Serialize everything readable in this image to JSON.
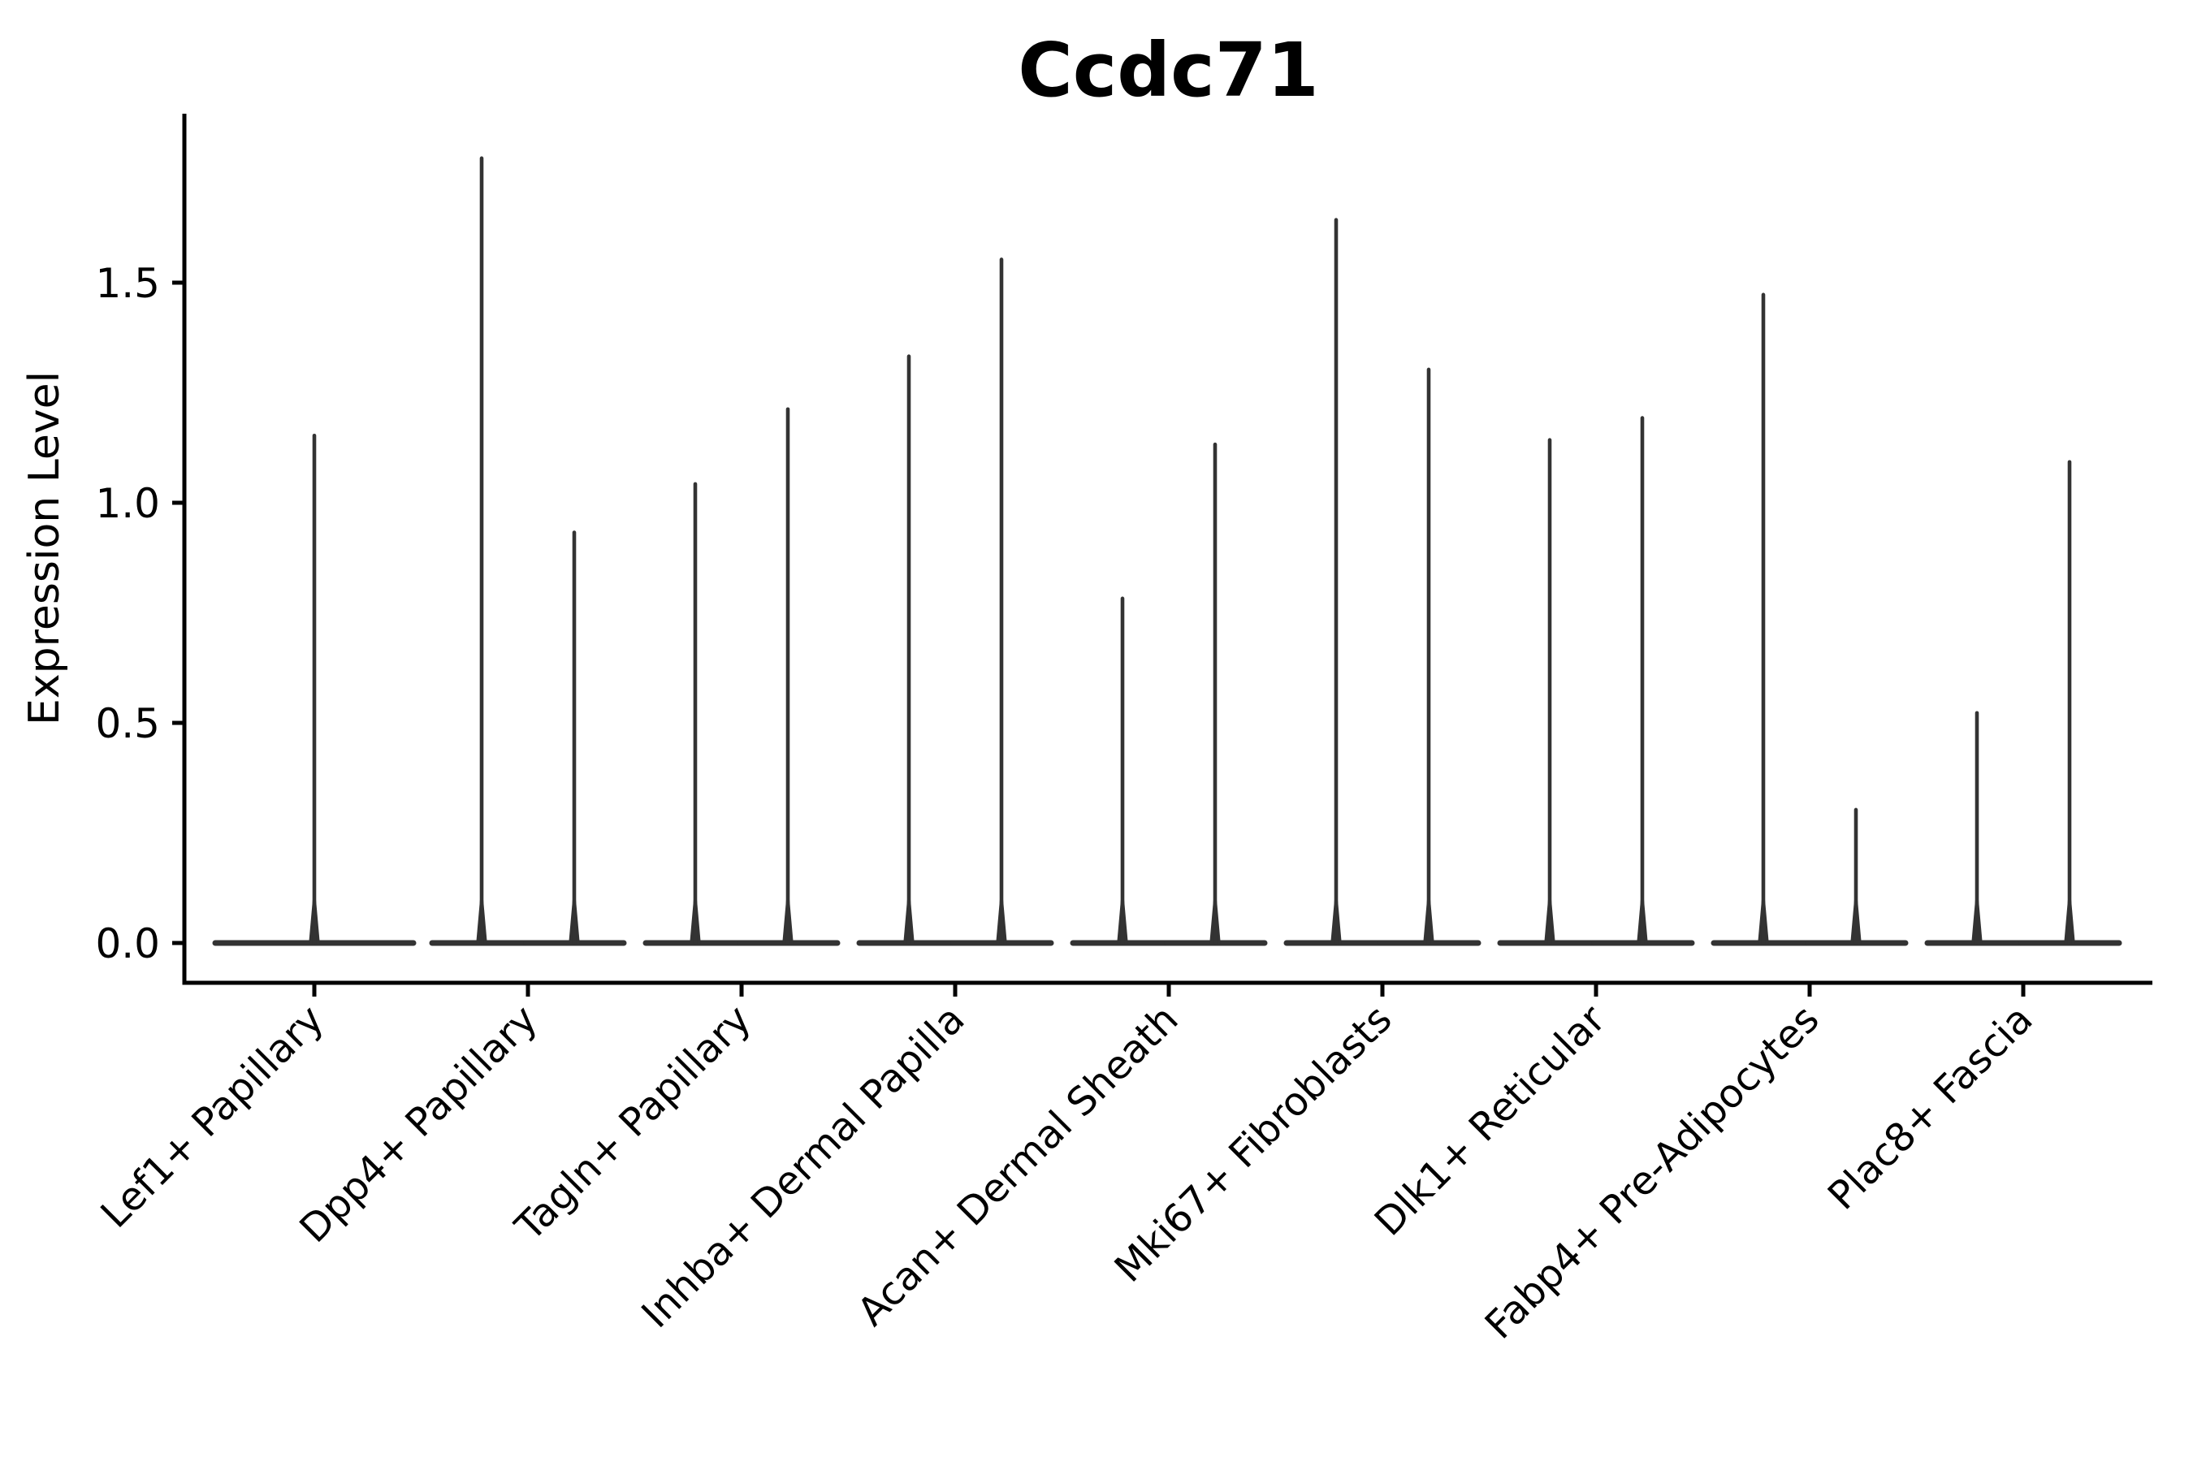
{
  "chart_data": {
    "type": "violin",
    "title": "Ccdc71",
    "ylabel": "Expression Level",
    "xlabel": "",
    "ytick_labels": [
      "0.0",
      "0.5",
      "1.0",
      "1.5"
    ],
    "ytick_values": [
      0.0,
      0.5,
      1.0,
      1.5
    ],
    "ylim": [
      -0.09,
      1.88
    ],
    "grid": false,
    "legend_position": "none",
    "violin_color": "#333333",
    "axis_color": "#000000",
    "background_color": "#ffffff",
    "categories": [
      "Lef1+ Papillary",
      "Dpp4+ Papillary",
      "Tagln+ Papillary",
      "Inhba+ Dermal Papilla",
      "Acan+ Dermal Sheath",
      "Mki67+ Fibroblasts",
      "Dlk1+ Reticular",
      "Fabp4+ Pre-Adipocytes",
      "Plac8+ Fascia"
    ],
    "description": "Split violin plot; each category has two dodged violins (single centered violin for Lef1+ Papillary). Nearly all density lies at expression 0 (flat baseline) with a thin spike rising to the maximum expression value.",
    "violins": [
      {
        "category": "Lef1+ Papillary",
        "slot": "center",
        "peak": 1.16
      },
      {
        "category": "Dpp4+ Papillary",
        "slot": "left",
        "peak": 1.79
      },
      {
        "category": "Dpp4+ Papillary",
        "slot": "right",
        "peak": 0.94
      },
      {
        "category": "Tagln+ Papillary",
        "slot": "left",
        "peak": 1.05
      },
      {
        "category": "Tagln+ Papillary",
        "slot": "right",
        "peak": 1.22
      },
      {
        "category": "Inhba+ Dermal Papilla",
        "slot": "left",
        "peak": 1.34
      },
      {
        "category": "Inhba+ Dermal Papilla",
        "slot": "right",
        "peak": 1.56
      },
      {
        "category": "Acan+ Dermal Sheath",
        "slot": "left",
        "peak": 0.79
      },
      {
        "category": "Acan+ Dermal Sheath",
        "slot": "right",
        "peak": 1.14
      },
      {
        "category": "Mki67+ Fibroblasts",
        "slot": "left",
        "peak": 1.65
      },
      {
        "category": "Mki67+ Fibroblasts",
        "slot": "right",
        "peak": 1.31
      },
      {
        "category": "Dlk1+ Reticular",
        "slot": "left",
        "peak": 1.15
      },
      {
        "category": "Dlk1+ Reticular",
        "slot": "right",
        "peak": 1.2
      },
      {
        "category": "Fabp4+ Pre-Adipocytes",
        "slot": "left",
        "peak": 1.48
      },
      {
        "category": "Fabp4+ Pre-Adipocytes",
        "slot": "right",
        "peak": 0.31
      },
      {
        "category": "Plac8+ Fascia",
        "slot": "left",
        "peak": 0.53
      },
      {
        "category": "Plac8+ Fascia",
        "slot": "right",
        "peak": 1.1
      }
    ]
  }
}
